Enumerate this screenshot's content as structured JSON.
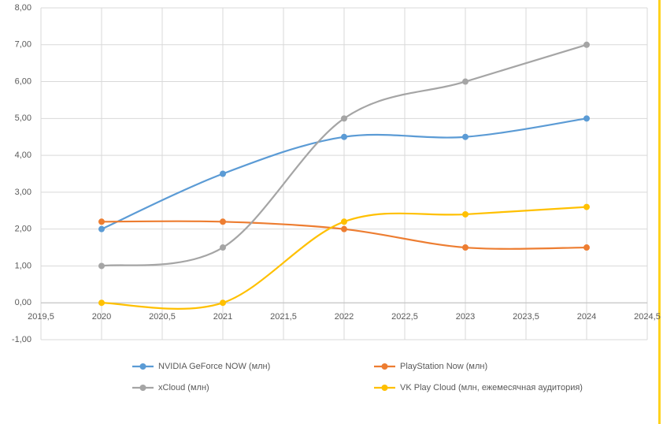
{
  "chart_data": {
    "type": "line",
    "x": [
      2020,
      2021,
      2022,
      2023,
      2024
    ],
    "xlim": [
      2019.5,
      2024.5
    ],
    "xticks": [
      {
        "value": 2019.5,
        "label": "2019,5"
      },
      2020,
      {
        "value": 2020.5,
        "label": "2020,5"
      },
      2021,
      {
        "value": 2021.5,
        "label": "2021,5"
      },
      2022,
      {
        "value": 2022.5,
        "label": "2022,5"
      },
      2023,
      {
        "value": 2023.5,
        "label": "2023,5"
      },
      2024,
      {
        "value": 2024.5,
        "label": "2024,5"
      }
    ],
    "ylim": [
      -1,
      8
    ],
    "yticks": [
      {
        "value": -1,
        "label": "-1,00"
      },
      {
        "value": 0,
        "label": "0,00"
      },
      {
        "value": 1,
        "label": "1,00"
      },
      {
        "value": 2,
        "label": "2,00"
      },
      {
        "value": 3,
        "label": "3,00"
      },
      {
        "value": 4,
        "label": "4,00"
      },
      {
        "value": 5,
        "label": "5,00"
      },
      {
        "value": 6,
        "label": "6,00"
      },
      {
        "value": 7,
        "label": "7,00"
      },
      {
        "value": 8,
        "label": "8,00"
      }
    ],
    "grid": true,
    "smooth": true,
    "legend": "bottom",
    "series": [
      {
        "name": "NVIDIA GeForce NOW (млн)",
        "color": "#5b9bd5",
        "values": [
          2,
          3.5,
          4.5,
          4.5,
          5
        ]
      },
      {
        "name": "PlayStation Now (млн)",
        "color": "#ed7d31",
        "values": [
          2.2,
          2.2,
          2,
          1.5,
          1.5
        ]
      },
      {
        "name": "xCloud (млн)",
        "color": "#a5a5a5",
        "values": [
          1,
          1.5,
          5,
          6,
          7
        ]
      },
      {
        "name": "VK Play Cloud (млн, ежемесячная аудитория)",
        "color": "#ffc000",
        "values": [
          0,
          0,
          2.2,
          2.4,
          2.6
        ]
      }
    ]
  }
}
